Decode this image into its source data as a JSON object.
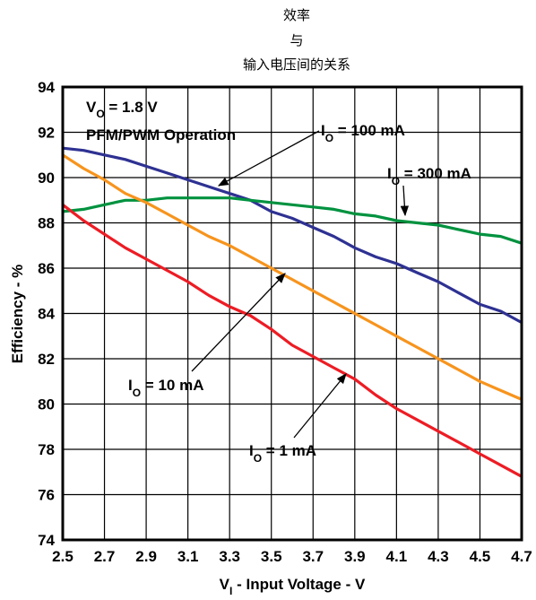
{
  "chart_data": {
    "type": "line",
    "title_lines": [
      "效率",
      "与",
      "输入电压间的关系"
    ],
    "xlabel": {
      "main": "V",
      "sub": "I",
      "rest": " - Input Voltage - V"
    },
    "ylabel": "Efficiency - %",
    "xlim": [
      2.5,
      4.7
    ],
    "ylim": [
      74,
      94
    ],
    "x_ticks": [
      "2.5",
      "2.7",
      "2.9",
      "3.1",
      "3.3",
      "3.5",
      "3.7",
      "3.9",
      "4.1",
      "4.3",
      "4.5",
      "4.7"
    ],
    "y_ticks": [
      "74",
      "76",
      "78",
      "80",
      "82",
      "84",
      "86",
      "88",
      "90",
      "92",
      "94"
    ],
    "grid": true,
    "conditions": [
      {
        "main": "V",
        "sub": "O",
        "rest": " = 1.8 V"
      },
      {
        "main": "PFM/PWM Operation",
        "sub": "",
        "rest": ""
      }
    ],
    "series": [
      {
        "name": {
          "main": "I",
          "sub": "O",
          "rest": " = 100 mA"
        },
        "color": "#2e3192",
        "x": [
          2.5,
          2.6,
          2.7,
          2.8,
          2.9,
          3.0,
          3.1,
          3.2,
          3.3,
          3.4,
          3.5,
          3.6,
          3.7,
          3.8,
          3.9,
          4.0,
          4.1,
          4.2,
          4.3,
          4.4,
          4.5,
          4.6,
          4.7
        ],
        "y": [
          91.3,
          91.2,
          91.0,
          90.8,
          90.5,
          90.2,
          89.9,
          89.6,
          89.3,
          89.0,
          88.5,
          88.2,
          87.8,
          87.4,
          86.9,
          86.5,
          86.2,
          85.8,
          85.4,
          84.9,
          84.4,
          84.1,
          83.6
        ]
      },
      {
        "name": {
          "main": "I",
          "sub": "O",
          "rest": " = 300 mA"
        },
        "color": "#00923f",
        "x": [
          2.5,
          2.6,
          2.7,
          2.8,
          2.9,
          3.0,
          3.1,
          3.2,
          3.3,
          3.4,
          3.5,
          3.6,
          3.7,
          3.8,
          3.9,
          4.0,
          4.1,
          4.2,
          4.3,
          4.4,
          4.5,
          4.6,
          4.7
        ],
        "y": [
          88.5,
          88.6,
          88.8,
          89.0,
          89.0,
          89.1,
          89.1,
          89.1,
          89.1,
          89.0,
          88.9,
          88.8,
          88.7,
          88.6,
          88.4,
          88.3,
          88.1,
          88.0,
          87.9,
          87.7,
          87.5,
          87.4,
          87.1
        ]
      },
      {
        "name": {
          "main": "I",
          "sub": "O",
          "rest": " = 10 mA"
        },
        "color": "#f7941d",
        "x": [
          2.5,
          2.6,
          2.7,
          2.8,
          2.9,
          3.0,
          3.1,
          3.2,
          3.3,
          3.4,
          3.5,
          3.6,
          3.7,
          3.8,
          3.9,
          4.0,
          4.1,
          4.2,
          4.3,
          4.4,
          4.5,
          4.6,
          4.7
        ],
        "y": [
          91.0,
          90.4,
          89.9,
          89.3,
          88.9,
          88.4,
          87.9,
          87.4,
          87.0,
          86.5,
          86.0,
          85.5,
          85.0,
          84.5,
          84.0,
          83.5,
          83.0,
          82.5,
          82.0,
          81.5,
          81.0,
          80.6,
          80.2
        ]
      },
      {
        "name": {
          "main": "I",
          "sub": "O",
          "rest": " = 1 mA"
        },
        "color": "#ed1c24",
        "x": [
          2.5,
          2.6,
          2.7,
          2.8,
          2.9,
          3.0,
          3.1,
          3.2,
          3.3,
          3.4,
          3.5,
          3.6,
          3.7,
          3.8,
          3.9,
          4.0,
          4.1,
          4.2,
          4.3,
          4.4,
          4.5,
          4.6,
          4.7
        ],
        "y": [
          88.8,
          88.1,
          87.5,
          86.9,
          86.4,
          85.9,
          85.4,
          84.8,
          84.3,
          83.9,
          83.3,
          82.6,
          82.1,
          81.6,
          81.1,
          80.4,
          79.8,
          79.3,
          78.8,
          78.3,
          77.8,
          77.3,
          76.8
        ]
      }
    ]
  }
}
